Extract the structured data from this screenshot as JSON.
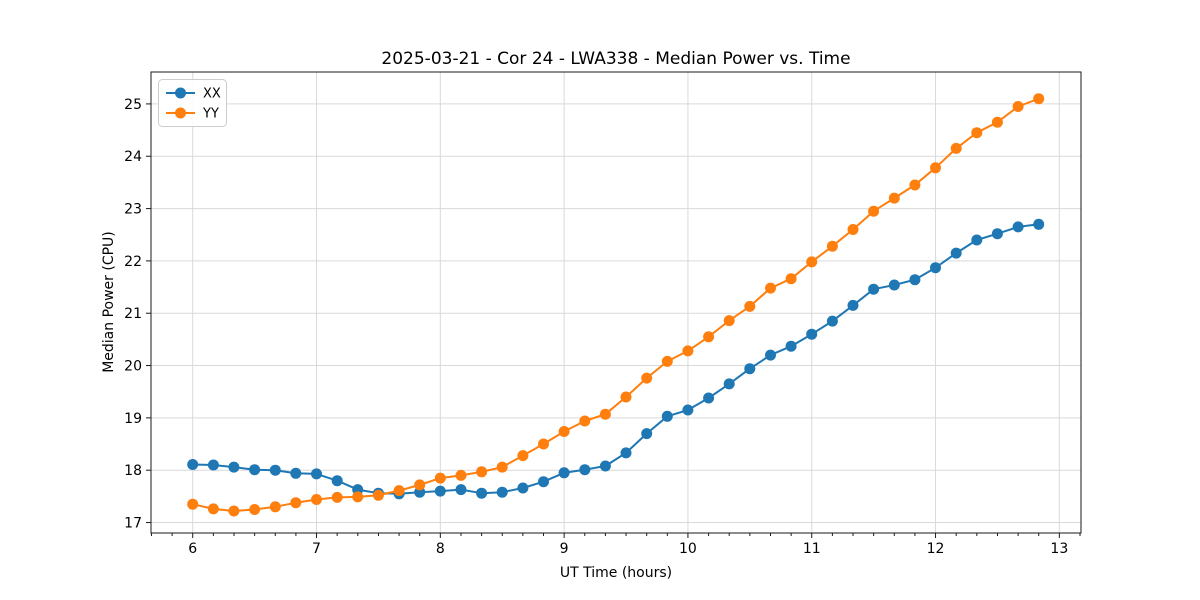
{
  "chart_data": {
    "type": "line",
    "title": "2025-03-21 - Cor 24 - LWA338 - Median Power vs. Time",
    "xlabel": "UT Time (hours)",
    "ylabel": "Median Power (CPU)",
    "xlim": [
      5.663,
      13.175
    ],
    "ylim": [
      16.8,
      25.61
    ],
    "xticks": [
      6,
      7,
      8,
      9,
      10,
      11,
      12,
      13
    ],
    "yticks": [
      17,
      18,
      19,
      20,
      21,
      22,
      23,
      24,
      25
    ],
    "minor_tick_step_x": 0.16667,
    "grid": true,
    "legend_position": "upper left",
    "marker": "circle",
    "x": [
      6.0,
      6.167,
      6.333,
      6.5,
      6.667,
      6.833,
      7.0,
      7.167,
      7.333,
      7.5,
      7.667,
      7.833,
      8.0,
      8.167,
      8.333,
      8.5,
      8.667,
      8.833,
      9.0,
      9.167,
      9.333,
      9.5,
      9.667,
      9.833,
      10.0,
      10.167,
      10.333,
      10.5,
      10.667,
      10.833,
      11.0,
      11.167,
      11.333,
      11.5,
      11.667,
      11.833,
      12.0,
      12.167,
      12.333,
      12.5,
      12.667,
      12.833
    ],
    "series": [
      {
        "name": "XX",
        "color": "#1f77b4",
        "values": [
          18.11,
          18.1,
          18.06,
          18.01,
          18.0,
          17.94,
          17.93,
          17.8,
          17.63,
          17.56,
          17.55,
          17.58,
          17.6,
          17.63,
          17.56,
          17.58,
          17.66,
          17.78,
          17.95,
          18.01,
          18.08,
          18.33,
          18.7,
          19.03,
          19.15,
          19.38,
          19.65,
          19.94,
          20.2,
          20.37,
          20.6,
          20.85,
          21.15,
          21.46,
          21.54,
          21.64,
          21.87,
          22.15,
          22.4,
          22.52,
          22.65,
          22.7
        ]
      },
      {
        "name": "YY",
        "color": "#ff7f0e",
        "values": [
          17.35,
          17.26,
          17.22,
          17.25,
          17.3,
          17.38,
          17.44,
          17.48,
          17.49,
          17.52,
          17.61,
          17.72,
          17.85,
          17.9,
          17.97,
          18.06,
          18.28,
          18.5,
          18.74,
          18.94,
          19.07,
          19.4,
          19.76,
          20.08,
          20.28,
          20.55,
          20.86,
          21.13,
          21.48,
          21.66,
          21.98,
          22.28,
          22.6,
          22.95,
          23.2,
          23.45,
          23.78,
          24.15,
          24.45,
          24.65,
          24.95,
          25.1
        ]
      }
    ]
  }
}
